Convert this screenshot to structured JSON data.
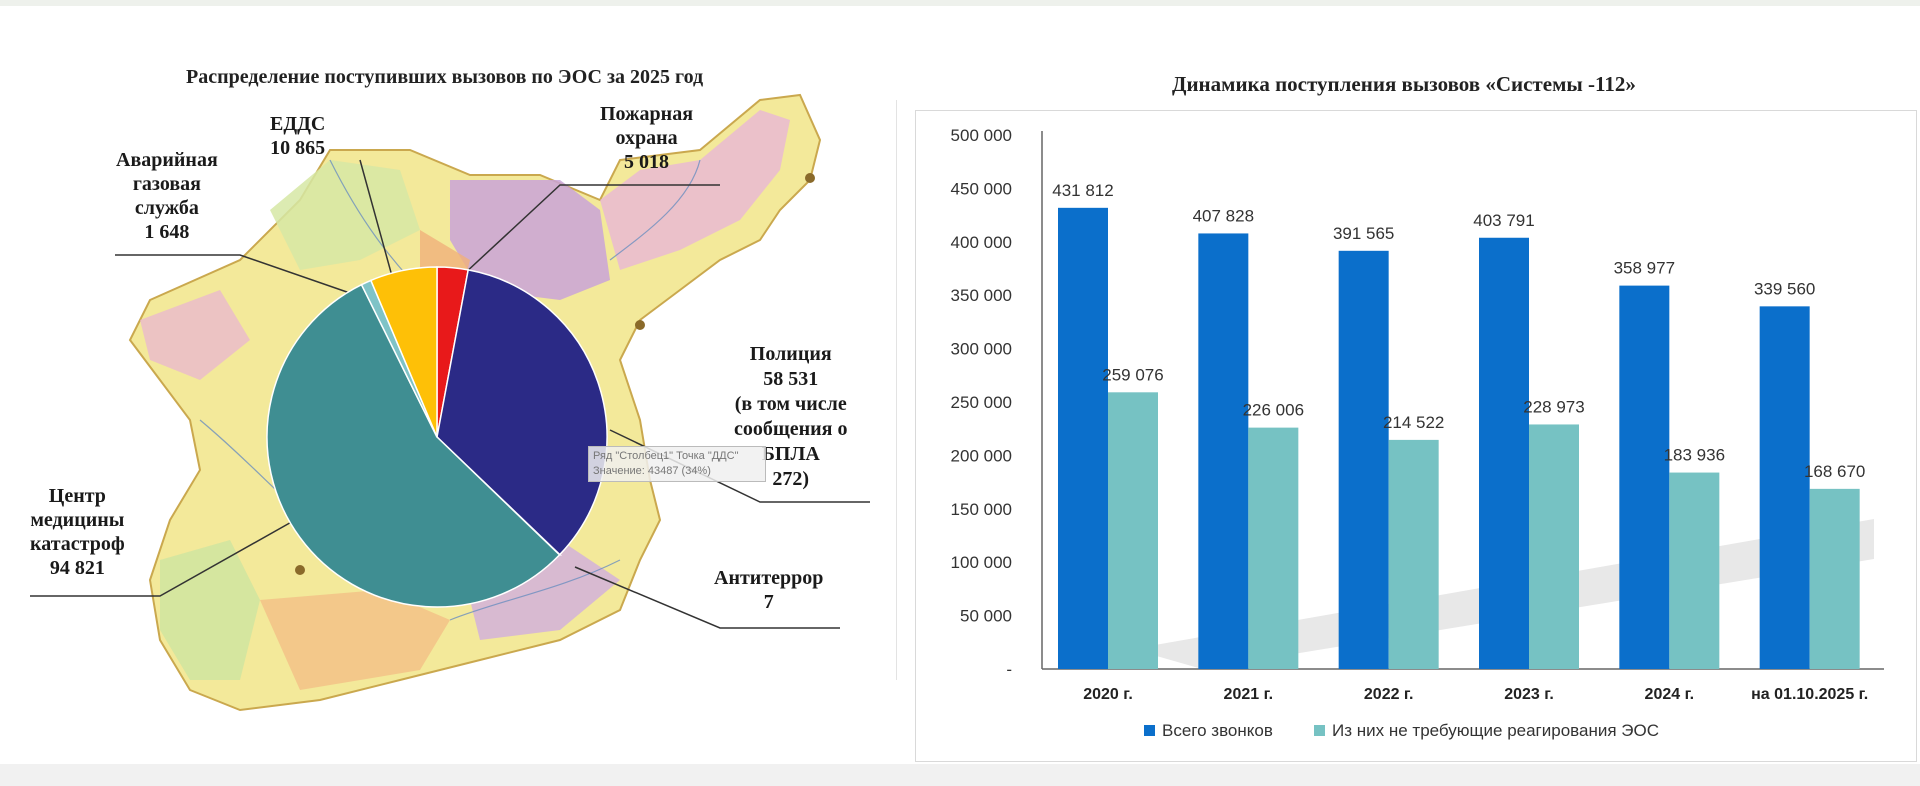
{
  "left": {
    "title": "Распределение поступивших вызовов по ЭОС за 2025 год",
    "labels": {
      "edds": [
        "ЕДДС",
        "10 865"
      ],
      "fire": [
        "Пожарная",
        "охрана",
        "5 018"
      ],
      "gas": [
        "Аварийная",
        "газовая",
        "служба",
        "1 648"
      ],
      "police": [
        "Полиция",
        "58 531",
        "(в том числе",
        "сообщения о",
        "БПЛА",
        "272)"
      ],
      "medical": [
        "Центр",
        "медицины",
        "катастроф",
        "94 821"
      ],
      "antiterror": [
        "Антитеррор",
        "7"
      ]
    },
    "tooltip": [
      "Ряд \"Столбец1\" Точка \"ДДС\"",
      "Значение: 43487 (34%)"
    ]
  },
  "chart_data": [
    {
      "type": "pie",
      "title": "Распределение поступивших вызовов по ЭОС за 2025 год",
      "slices": [
        {
          "label": "Пожарная охрана",
          "value": 5018,
          "color": "#e8191a"
        },
        {
          "label": "Полиция",
          "value": 58531,
          "color": "#2b2a86"
        },
        {
          "label": "Антитеррор",
          "value": 7,
          "color": "#cfd6da"
        },
        {
          "label": "Центр медицины катастроф",
          "value": 94821,
          "color": "#3f8e92"
        },
        {
          "label": "Аварийная газовая служба",
          "value": 1648,
          "color": "#7fc3c7"
        },
        {
          "label": "ЕДДС",
          "value": 10865,
          "color": "#fec007"
        }
      ]
    },
    {
      "type": "bar",
      "title": "Динамика поступления вызовов «Системы -112»",
      "categories": [
        "2020 г.",
        "2021 г.",
        "2022 г.",
        "2023 г.",
        "2024 г.",
        "на 01.10.2025 г."
      ],
      "series": [
        {
          "name": "Всего звонков",
          "color": "#0b6fcb",
          "values": [
            431812,
            407828,
            391565,
            403791,
            358977,
            339560
          ]
        },
        {
          "name": "Из них не требующие реагирования ЭОС",
          "color": "#76c2c3",
          "values": [
            259076,
            226006,
            214522,
            228973,
            183936,
            168670
          ]
        }
      ],
      "y_ticks": [
        "500 000",
        "450 000",
        "400 000",
        "350 000",
        "300 000",
        "250 000",
        "200 000",
        "150 000",
        "100 000",
        "50 000",
        "-"
      ],
      "value_labels_total": [
        "431 812",
        "407 828",
        "391 565",
        "403 791",
        "358 977",
        "339 560"
      ],
      "value_labels_nonresp": [
        "259 076",
        "226 006",
        "214 522",
        "228 973",
        "183 936",
        "168 670"
      ],
      "ylim": [
        0,
        500000
      ],
      "legend": "bottom",
      "grid": false
    }
  ]
}
